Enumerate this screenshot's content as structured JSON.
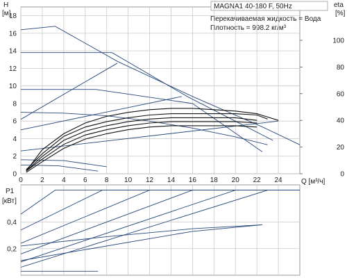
{
  "chart_data": [
    {
      "type": "line",
      "title": "MAGNA1 40-180 F, 50Hz",
      "annotations": [
        "Перекачиваемая жидкость = Вода",
        "Плотность = 998.2 кг/м³"
      ],
      "y_title": "H",
      "y_unit": "[м]",
      "y2_title": "eta",
      "y2_unit": "[%]",
      "x_label": "Q [м³/ч]",
      "xlim": [
        0,
        26
      ],
      "ylim": [
        0,
        19
      ],
      "y2lim": [
        0,
        125
      ],
      "x_ticks": [
        0,
        2,
        4,
        6,
        8,
        10,
        12,
        14,
        16,
        18,
        20,
        22,
        24
      ],
      "y_ticks": [
        0,
        2,
        4,
        6,
        8,
        10,
        12,
        14,
        16,
        18
      ],
      "y2_ticks": [
        0,
        20,
        40,
        60,
        80,
        100
      ],
      "grid": true,
      "head_series": [
        {
          "x": [
            0,
            3.2,
            9.0,
            16.0,
            22.4,
            26
          ],
          "y": [
            16.4,
            16.8,
            12.8,
            8.8,
            5.4,
            3.3
          ]
        },
        {
          "x": [
            0,
            9.0
          ],
          "y": [
            6.2,
            12.6
          ]
        },
        {
          "x": [
            0,
            8.5,
            15.5,
            23.5
          ],
          "y": [
            13.8,
            13.8,
            8.8,
            3.8
          ]
        },
        {
          "x": [
            0,
            15.0
          ],
          "y": [
            5.0,
            8.8
          ]
        },
        {
          "x": [
            0,
            7.0,
            16.0,
            22.5
          ],
          "y": [
            9.6,
            9.6,
            8.0,
            2.5
          ]
        },
        {
          "x": [
            0,
            24.0
          ],
          "y": [
            2.6,
            6.0
          ]
        },
        {
          "x": [
            0,
            4,
            8,
            12,
            16,
            20,
            23
          ],
          "y": [
            7.0,
            6.9,
            6.6,
            6.0,
            5.2,
            4.2,
            3.3
          ]
        },
        {
          "x": [
            0,
            3.5,
            7.2
          ],
          "y": [
            1.0,
            0.9,
            0.3
          ]
        },
        {
          "x": [
            0,
            4.0,
            8.0
          ],
          "y": [
            1.6,
            1.5,
            0.8
          ]
        }
      ],
      "eta_series": [
        {
          "x": [
            0.5,
            2,
            4,
            6,
            8,
            10,
            12,
            14,
            16,
            18,
            20,
            22,
            24
          ],
          "y": [
            2,
            18,
            30,
            38,
            43,
            46,
            48,
            49,
            49,
            48,
            47,
            45,
            40
          ]
        },
        {
          "x": [
            0.5,
            2,
            4,
            6,
            8,
            10,
            12,
            14,
            16,
            18,
            20,
            22,
            23
          ],
          "y": [
            3,
            15,
            28,
            35,
            39,
            42,
            44,
            45,
            45,
            45,
            45,
            44,
            41
          ]
        },
        {
          "x": [
            0.5,
            2,
            4,
            6,
            8,
            10,
            12,
            14,
            16,
            18,
            20,
            22
          ],
          "y": [
            2,
            13,
            25,
            32,
            36,
            39,
            41,
            42,
            42,
            42,
            42,
            40
          ]
        },
        {
          "x": [
            0.5,
            2,
            4,
            6,
            8,
            10,
            12,
            14,
            16,
            18,
            20,
            22
          ],
          "y": [
            2,
            11,
            22,
            29,
            33,
            36,
            38,
            39,
            39,
            39,
            39,
            38
          ]
        },
        {
          "x": [
            0.5,
            2,
            4,
            6,
            8,
            10,
            12,
            14,
            16,
            18,
            20,
            22
          ],
          "y": [
            1,
            9,
            19,
            26,
            30,
            33,
            35,
            36,
            36,
            36,
            36,
            35
          ]
        }
      ]
    },
    {
      "type": "line",
      "y_title": "P1",
      "y_unit": "[кВт]",
      "xlim": [
        0,
        26
      ],
      "ylim": [
        0,
        0.68
      ],
      "y_ticks": [
        0.2,
        0.4
      ],
      "y_tick_labels": [
        "0,2",
        "0,4"
      ],
      "grid": true,
      "series": [
        {
          "x": [
            0,
            3.2,
            27
          ],
          "y": [
            0.46,
            0.64,
            0.64
          ]
        },
        {
          "x": [
            0,
            7.6,
            27
          ],
          "y": [
            0.34,
            0.64,
            0.64
          ]
        },
        {
          "x": [
            0,
            12.0,
            27
          ],
          "y": [
            0.24,
            0.64,
            0.64
          ]
        },
        {
          "x": [
            0,
            16.0,
            27
          ],
          "y": [
            0.16,
            0.64,
            0.64
          ]
        },
        {
          "x": [
            0,
            20.0,
            27
          ],
          "y": [
            0.1,
            0.64,
            0.64
          ]
        },
        {
          "x": [
            0,
            23.0,
            27
          ],
          "y": [
            0.06,
            0.64,
            0.64
          ]
        },
        {
          "x": [
            0,
            8,
            16,
            22.5
          ],
          "y": [
            0.22,
            0.29,
            0.35,
            0.38
          ]
        },
        {
          "x": [
            0,
            16,
            22.5
          ],
          "y": [
            0.11,
            0.33,
            0.38
          ]
        },
        {
          "x": [
            0,
            7.2
          ],
          "y": [
            0.03,
            0.03
          ]
        }
      ]
    }
  ]
}
